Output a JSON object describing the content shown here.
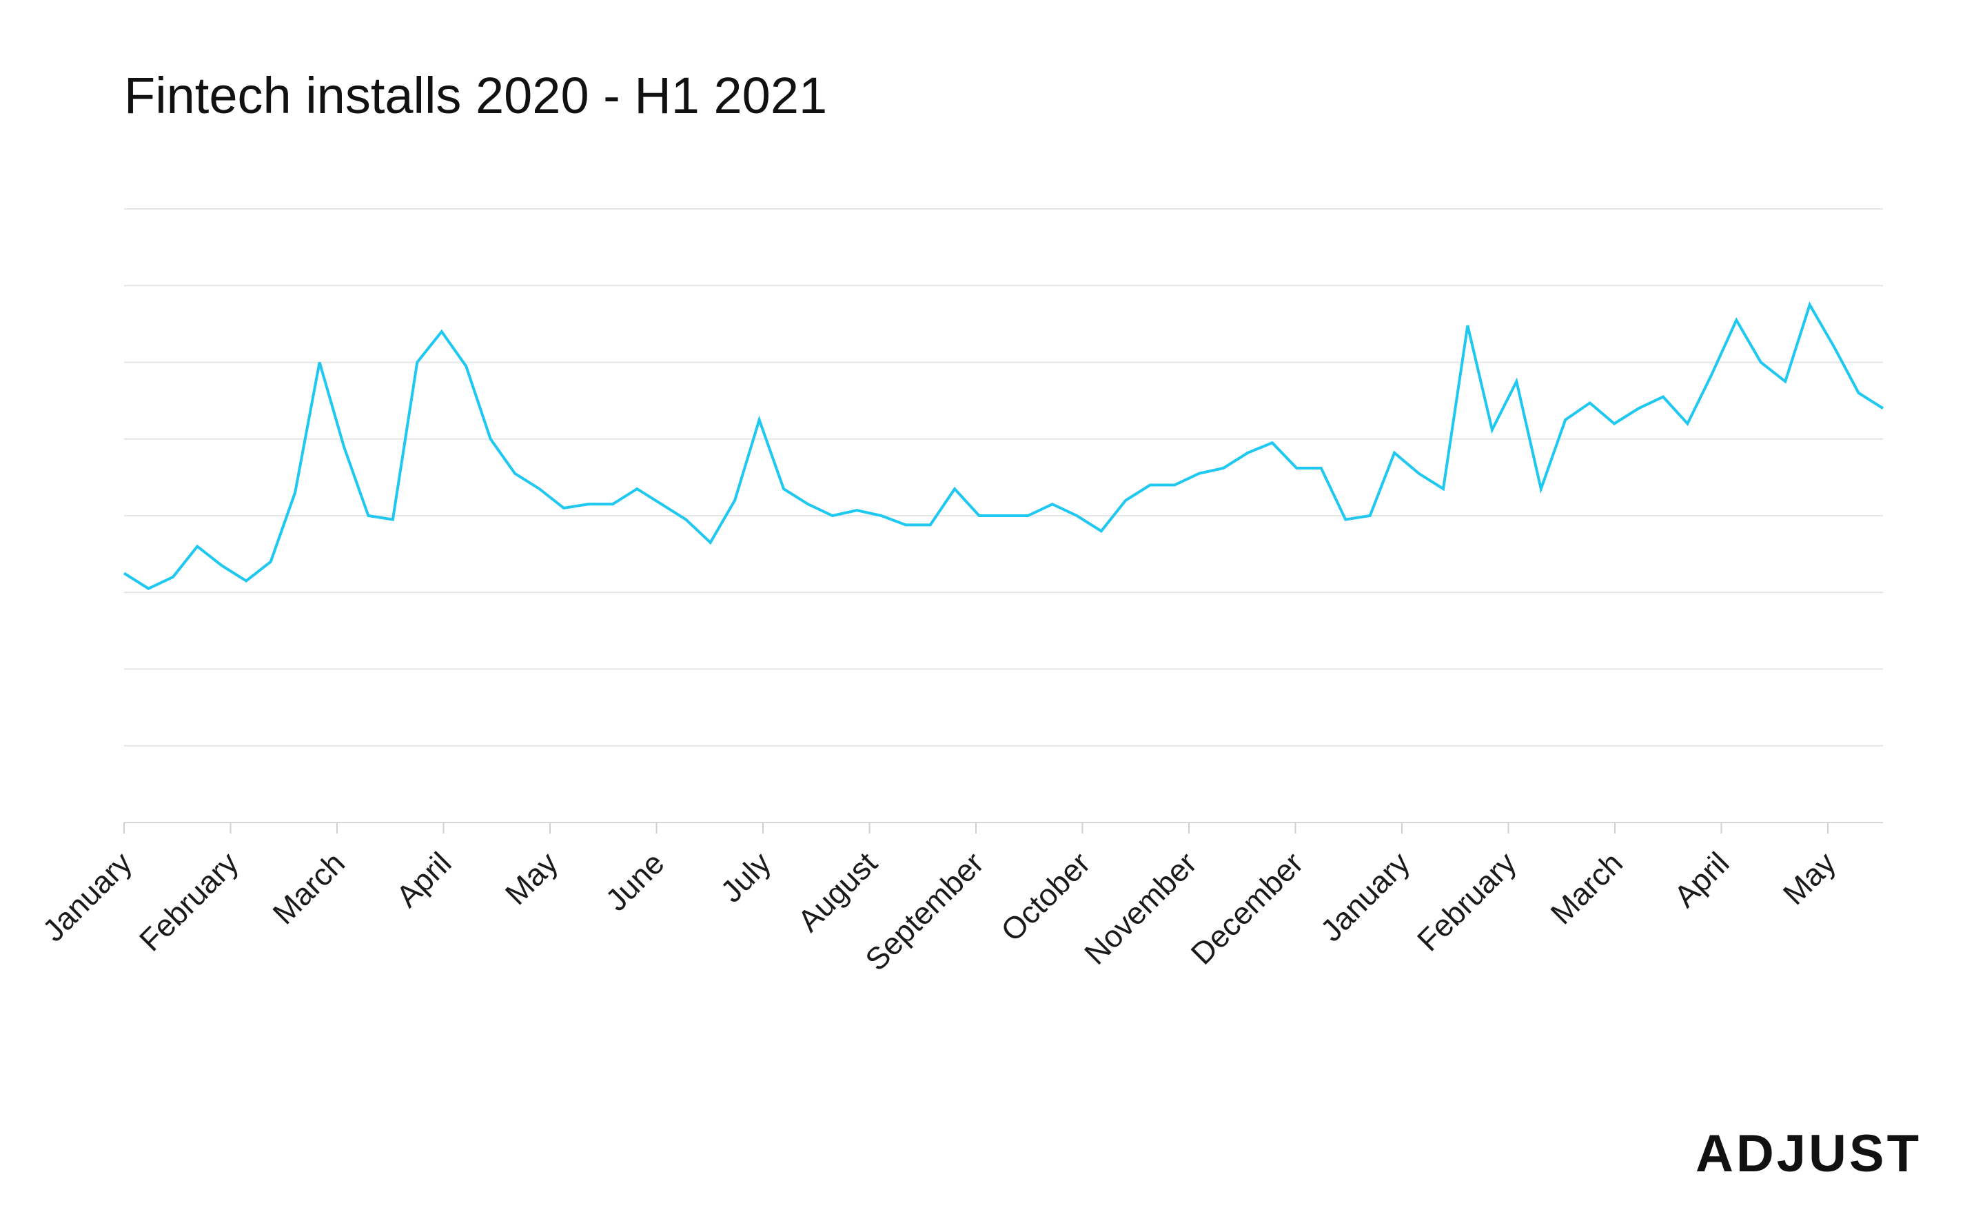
{
  "chart_data": {
    "type": "line",
    "title": "Fintech installs 2020 - H1 2021",
    "xlabel": "",
    "ylabel": "",
    "grid": true,
    "legend": "none",
    "line_color": "#1ec8f0",
    "ylim": [
      0,
      8
    ],
    "gridlines": 8,
    "x_tick_labels": [
      "January",
      "February",
      "March",
      "April",
      "May",
      "June",
      "July",
      "August",
      "September",
      "October",
      "November",
      "December",
      "January",
      "February",
      "March",
      "April",
      "May"
    ],
    "series": [
      {
        "values": [
          3.25,
          3.05,
          3.2,
          3.6,
          3.35,
          3.15,
          3.4,
          4.3,
          6.0,
          4.9,
          4.0,
          3.95,
          6.0,
          6.4,
          5.95,
          5.0,
          4.55,
          4.35,
          4.1,
          4.15,
          4.15,
          4.35,
          4.15,
          3.95,
          3.65,
          4.2,
          5.25,
          4.35,
          4.15,
          4.0,
          4.07,
          4.0,
          3.88,
          3.88,
          4.35,
          4.0,
          4.0,
          4.0,
          4.15,
          4.0,
          3.8,
          4.2,
          4.4,
          4.4,
          4.55,
          4.62,
          4.82,
          4.95,
          4.62,
          4.62,
          3.95,
          4.0,
          4.82,
          4.55,
          4.35,
          6.48,
          5.12,
          5.75,
          4.35,
          5.25,
          5.47,
          5.2,
          5.4,
          5.55,
          5.2,
          5.85,
          6.55,
          6.0,
          5.75,
          6.75,
          6.2,
          5.6,
          5.4
        ]
      }
    ]
  },
  "brand": {
    "logo_text": "ADJUST"
  }
}
